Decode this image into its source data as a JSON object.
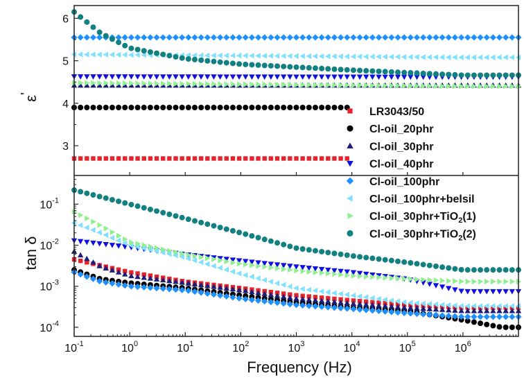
{
  "chart_data": {
    "type": "scatter",
    "xlabel": "Frequency (Hz)",
    "xscale": "log",
    "xlim": [
      0.1,
      10000000
    ],
    "x_ticks": [
      {
        "base": "10",
        "exp": "-1",
        "value": 0.1
      },
      {
        "base": "10",
        "exp": "0",
        "value": 1
      },
      {
        "base": "10",
        "exp": "1",
        "value": 10
      },
      {
        "base": "10",
        "exp": "2",
        "value": 100
      },
      {
        "base": "10",
        "exp": "3",
        "value": 1000
      },
      {
        "base": "10",
        "exp": "4",
        "value": 10000
      },
      {
        "base": "10",
        "exp": "5",
        "value": 100000
      },
      {
        "base": "10",
        "exp": "6",
        "value": 1000000
      }
    ],
    "legend_position": "inside, right of the upper panel extending into the lower panel",
    "series": [
      {
        "name": "LR3043/50",
        "name_main": "LR3043/50",
        "name_sub": "",
        "name_tail": "",
        "marker": "square",
        "color": "#e8242a",
        "eps": [
          [
            0.1,
            2.7
          ],
          [
            1000000,
            2.7
          ]
        ],
        "tan": [
          [
            0.1,
            0.0045
          ],
          [
            0.3,
            0.0032
          ],
          [
            1,
            0.0022
          ],
          [
            10,
            0.0013
          ],
          [
            100,
            0.0009
          ],
          [
            1000,
            0.0006
          ],
          [
            10000,
            0.00045
          ],
          [
            100000,
            0.00035
          ],
          [
            1000000,
            0.0003
          ]
        ]
      },
      {
        "name": "Cl-oil_20phr",
        "name_main": "Cl-oil_20phr",
        "name_sub": "",
        "name_tail": "",
        "marker": "circle",
        "color": "#000000",
        "eps": [
          [
            0.1,
            3.9
          ],
          [
            1000000,
            3.9
          ]
        ],
        "tan": [
          [
            0.1,
            0.0025
          ],
          [
            0.3,
            0.0015
          ],
          [
            1,
            0.0012
          ],
          [
            10,
            0.0009
          ],
          [
            100,
            0.0006
          ],
          [
            1000,
            0.0004
          ],
          [
            10000,
            0.0003
          ],
          [
            100000,
            0.00025
          ],
          [
            1000000,
            0.00015
          ],
          [
            5000000,
            0.0001
          ]
        ]
      },
      {
        "name": "Cl-oil_30phr",
        "name_main": "Cl-oil_30phr",
        "name_sub": "",
        "name_tail": "",
        "marker": "triangle-up",
        "color": "#1b1f7a",
        "eps": [
          [
            0.1,
            4.42
          ],
          [
            1000000,
            4.42
          ]
        ],
        "tan": [
          [
            0.1,
            0.007
          ],
          [
            0.3,
            0.003
          ],
          [
            1,
            0.0018
          ],
          [
            10,
            0.0012
          ],
          [
            100,
            0.0008
          ],
          [
            1000,
            0.0005
          ],
          [
            10000,
            0.00038
          ],
          [
            100000,
            0.0003
          ],
          [
            1000000,
            0.00025
          ]
        ]
      },
      {
        "name": "Cl-oil_40phr",
        "name_main": "Cl-oil_40phr",
        "name_sub": "",
        "name_tail": "",
        "marker": "triangle-down",
        "color": "#1010e0",
        "eps": [
          [
            0.1,
            4.63
          ],
          [
            1000000,
            4.62
          ]
        ],
        "tan": [
          [
            0.1,
            0.013
          ],
          [
            1,
            0.009
          ],
          [
            10,
            0.006
          ],
          [
            100,
            0.0042
          ],
          [
            1000,
            0.003
          ],
          [
            10000,
            0.0022
          ],
          [
            100000,
            0.0015
          ],
          [
            1000000,
            0.00075
          ]
        ]
      },
      {
        "name": "Cl-oil_100phr",
        "name_main": "Cl-oil_100phr",
        "name_sub": "",
        "name_tail": "",
        "marker": "diamond",
        "color": "#1e90ff",
        "eps": [
          [
            0.1,
            5.55
          ],
          [
            1000000,
            5.55
          ]
        ],
        "tan": [
          [
            0.1,
            0.0022
          ],
          [
            0.3,
            0.0013
          ],
          [
            1,
            0.001
          ],
          [
            10,
            0.0008
          ],
          [
            100,
            0.0005
          ],
          [
            1000,
            0.00035
          ],
          [
            10000,
            0.00028
          ],
          [
            100000,
            0.00022
          ],
          [
            1000000,
            0.00018
          ]
        ]
      },
      {
        "name": "Cl-oil_100phr+belsil",
        "name_main": "Cl-oil_100phr+belsil",
        "name_sub": "",
        "name_tail": "",
        "marker": "triangle-left",
        "color": "#7fe0ff",
        "eps": [
          [
            0.1,
            5.15
          ],
          [
            1000000,
            5.08
          ]
        ],
        "tan": [
          [
            0.1,
            0.035
          ],
          [
            0.3,
            0.02
          ],
          [
            1,
            0.01
          ],
          [
            10,
            0.005
          ],
          [
            100,
            0.002
          ],
          [
            1000,
            0.0009
          ],
          [
            10000,
            0.0006
          ],
          [
            100000,
            0.0004
          ],
          [
            1000000,
            0.00033
          ]
        ]
      },
      {
        "name": "Cl-oil_30phr+TiO2(1)",
        "name_main": "Cl-oil_30phr+TiO",
        "name_sub": "2",
        "name_tail": "(1)",
        "marker": "triangle-right",
        "color": "#90f090",
        "eps": [
          [
            0.1,
            4.48
          ],
          [
            1000000,
            4.4
          ]
        ],
        "tan": [
          [
            0.1,
            0.065
          ],
          [
            0.3,
            0.03
          ],
          [
            1,
            0.012
          ],
          [
            10,
            0.006
          ],
          [
            100,
            0.0035
          ],
          [
            1000,
            0.0024
          ],
          [
            10000,
            0.0018
          ],
          [
            100000,
            0.0015
          ],
          [
            1000000,
            0.0013
          ]
        ]
      },
      {
        "name": "Cl-oil_30phr+TiO2(2)",
        "name_main": "Cl-oil_30phr+TiO",
        "name_sub": "2",
        "name_tail": "(2)",
        "marker": "circle",
        "color": "#118080",
        "eps": [
          [
            0.1,
            6.15
          ],
          [
            0.3,
            5.65
          ],
          [
            1,
            5.3
          ],
          [
            10,
            5.05
          ],
          [
            100,
            4.92
          ],
          [
            1000,
            4.85
          ],
          [
            10000,
            4.78
          ],
          [
            100000,
            4.72
          ],
          [
            1000000,
            4.66
          ]
        ],
        "tan": [
          [
            0.1,
            0.22
          ],
          [
            1,
            0.1
          ],
          [
            10,
            0.045
          ],
          [
            100,
            0.02
          ],
          [
            1000,
            0.0085
          ],
          [
            10000,
            0.0055
          ],
          [
            100000,
            0.0038
          ],
          [
            1000000,
            0.0025
          ]
        ]
      }
    ],
    "upper_panel": {
      "ylabel": "ε",
      "ylabel_mark": "'",
      "ylim": [
        2.3,
        6.3
      ],
      "yticks": [
        {
          "label": "3",
          "value": 3
        },
        {
          "label": "4",
          "value": 4
        },
        {
          "label": "5",
          "value": 5
        },
        {
          "label": "6",
          "value": 6
        }
      ]
    },
    "lower_panel": {
      "ylabel": "tan δ",
      "yscale": "log",
      "ylim": [
        6e-05,
        0.5
      ],
      "yticks": [
        {
          "base": "10",
          "exp": "-1",
          "value": 0.1
        },
        {
          "base": "10",
          "exp": "-2",
          "value": 0.01
        },
        {
          "base": "10",
          "exp": "-3",
          "value": 0.001
        },
        {
          "base": "10",
          "exp": "-4",
          "value": 0.0001
        }
      ]
    }
  }
}
